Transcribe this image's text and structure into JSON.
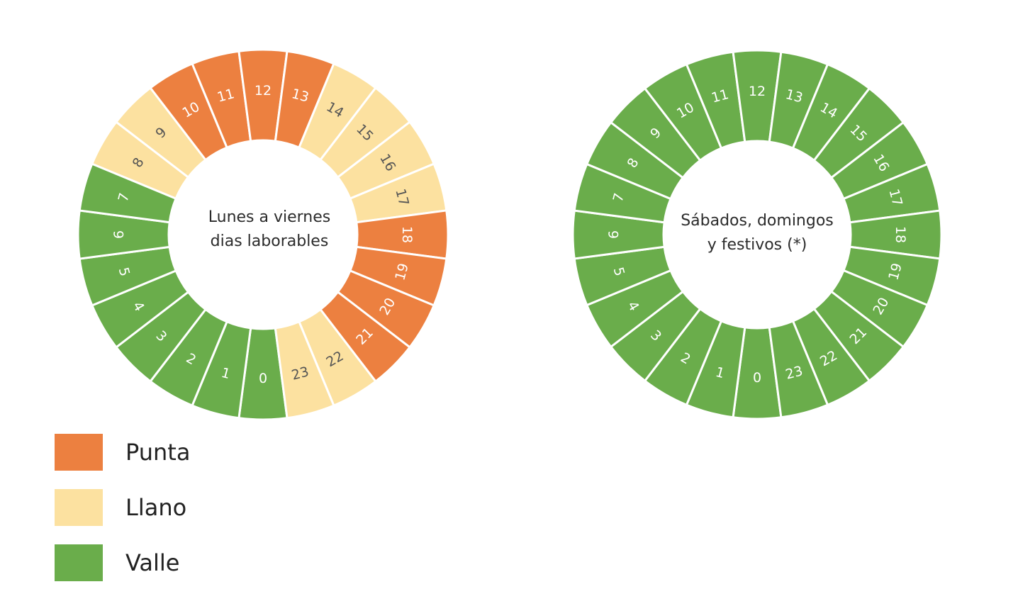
{
  "colors": {
    "punta": "#EC8040",
    "llano": "#FCE1A0",
    "valle": "#6AAD4B"
  },
  "chart_data": [
    {
      "type": "pie",
      "subtype": "donut-24h",
      "center_text": [
        "Lunes a viernes",
        "dias laborables"
      ],
      "hours": [
        "0",
        "1",
        "2",
        "3",
        "4",
        "5",
        "6",
        "7",
        "8",
        "9",
        "10",
        "11",
        "12",
        "13",
        "14",
        "15",
        "16",
        "17",
        "18",
        "19",
        "20",
        "21",
        "22",
        "23"
      ],
      "periods": [
        "valle",
        "valle",
        "valle",
        "valle",
        "valle",
        "valle",
        "valle",
        "valle",
        "llano",
        "llano",
        "punta",
        "punta",
        "punta",
        "punta",
        "llano",
        "llano",
        "llano",
        "llano",
        "punta",
        "punta",
        "punta",
        "punta",
        "llano",
        "llano"
      ]
    },
    {
      "type": "pie",
      "subtype": "donut-24h",
      "center_text": [
        "Sábados, domingos",
        "y festivos (*)"
      ],
      "hours": [
        "0",
        "1",
        "2",
        "3",
        "4",
        "5",
        "6",
        "7",
        "8",
        "9",
        "10",
        "11",
        "12",
        "13",
        "14",
        "15",
        "16",
        "17",
        "18",
        "19",
        "20",
        "21",
        "22",
        "23"
      ],
      "periods": [
        "valle",
        "valle",
        "valle",
        "valle",
        "valle",
        "valle",
        "valle",
        "valle",
        "valle",
        "valle",
        "valle",
        "valle",
        "valle",
        "valle",
        "valle",
        "valle",
        "valle",
        "valle",
        "valle",
        "valle",
        "valle",
        "valle",
        "valle",
        "valle"
      ]
    }
  ],
  "legend": [
    {
      "key": "punta",
      "label": "Punta"
    },
    {
      "key": "llano",
      "label": "Llano"
    },
    {
      "key": "valle",
      "label": "Valle"
    }
  ]
}
